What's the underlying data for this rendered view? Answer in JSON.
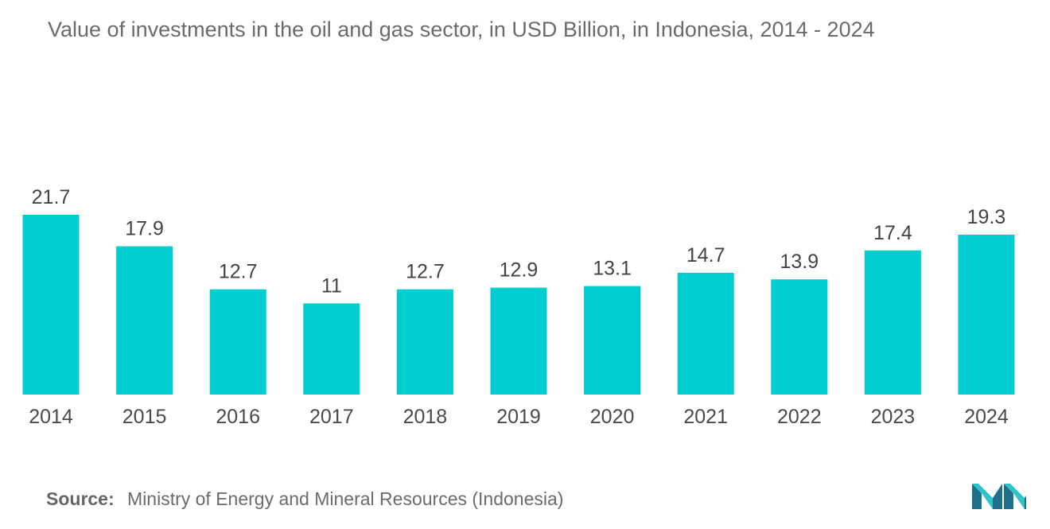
{
  "colors": {
    "bar": "#00CDD0",
    "title": "#6b6b6b",
    "logo_dark": "#1f6f8b",
    "logo_light": "#2ec4c9"
  },
  "chart_data": {
    "type": "bar",
    "title": "Value of investments in the oil and gas sector, in USD Billion, in Indonesia, 2014 - 2024",
    "categories": [
      "2014",
      "2015",
      "2016",
      "2017",
      "2018",
      "2019",
      "2020",
      "2021",
      "2022",
      "2023",
      "2024"
    ],
    "values": [
      21.7,
      17.9,
      12.7,
      11,
      12.7,
      12.9,
      13.1,
      14.7,
      13.9,
      17.4,
      19.3
    ],
    "value_labels": [
      "21.7",
      "17.9",
      "12.7",
      "11",
      "12.7",
      "12.9",
      "13.1",
      "14.7",
      "13.9",
      "17.4",
      "19.3"
    ],
    "xlabel": "",
    "ylabel": "",
    "ylim": [
      0,
      21.7
    ],
    "grid": false,
    "legend": "none"
  },
  "source": {
    "label": "Source:",
    "text": "Ministry of Energy and Mineral Resources (Indonesia)"
  },
  "logo": {
    "icon": "mordor-intelligence-logo-icon"
  }
}
